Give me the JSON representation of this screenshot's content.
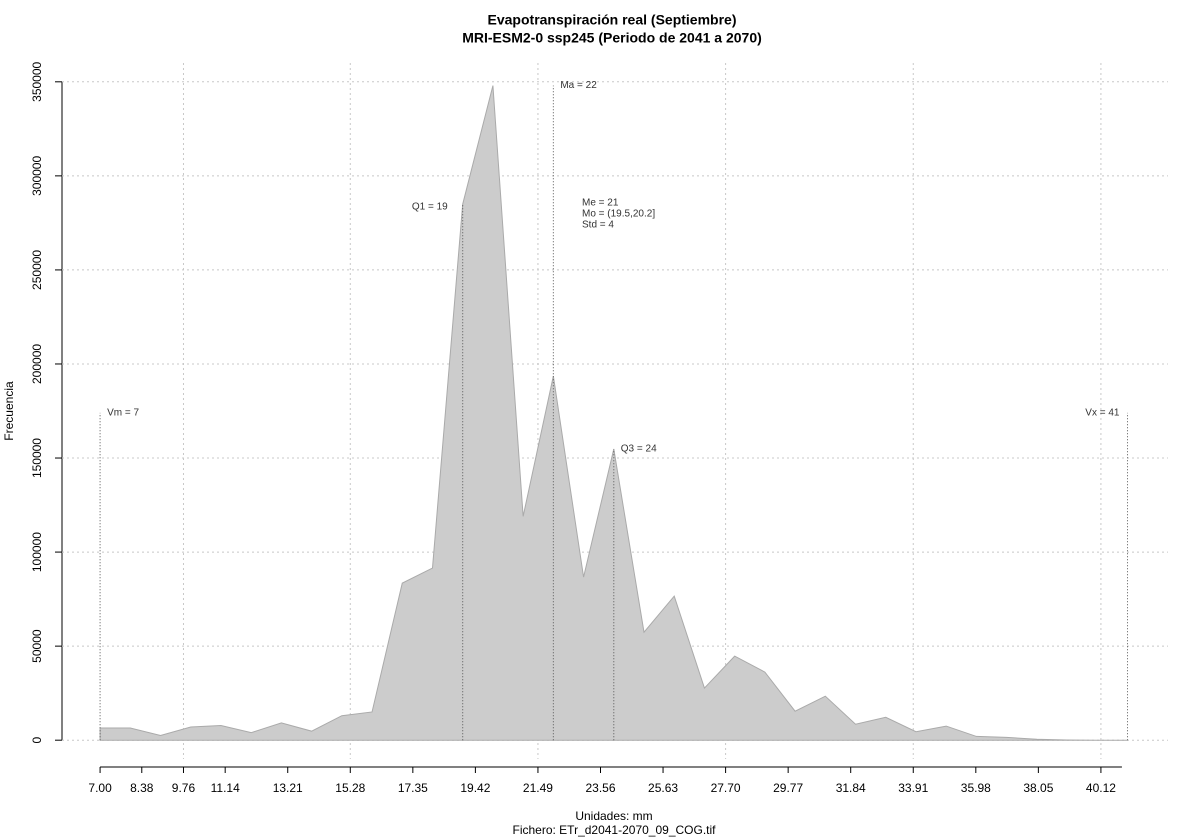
{
  "chart_data": {
    "type": "area",
    "title": "Evapotranspiración real (Septiembre)",
    "subtitle": "MRI-ESM2-0 ssp245 (Periodo de 2041 a 2070)",
    "x_label": "Unidades: mm",
    "caption": "Fichero: ETr_d2041-2070_09_COG.tif",
    "y_label": "Frecuencia",
    "x": [
      7,
      8,
      9,
      10,
      11,
      12,
      13,
      14,
      15,
      16,
      17,
      18,
      19,
      20,
      21,
      22,
      23,
      24,
      25,
      26,
      27,
      28,
      29,
      30,
      31,
      32,
      33,
      34,
      35,
      36,
      37,
      38,
      39,
      40,
      41
    ],
    "values": [
      6500,
      6500,
      2500,
      7000,
      7800,
      4000,
      9200,
      4800,
      13000,
      15000,
      83500,
      91500,
      285000,
      348000,
      119000,
      193600,
      86700,
      154800,
      57400,
      76600,
      27700,
      44700,
      36200,
      15400,
      23400,
      8500,
      12200,
      4500,
      7500,
      2000,
      1500,
      500,
      100,
      0,
      0
    ],
    "color": "#cccccc",
    "xlim": [
      5.74,
      42.34
    ],
    "ylim": [
      -10000,
      360000
    ],
    "xticks": [
      {
        "value": 7,
        "label": "7.00"
      },
      8.38,
      9.76,
      11.14,
      13.21,
      15.28,
      17.35,
      19.42,
      21.49,
      23.56,
      25.63,
      {
        "value": 27.7,
        "label": "27.70"
      },
      29.77,
      31.84,
      33.91,
      35.98,
      38.05,
      40.12
    ],
    "yticks": [
      0,
      50000,
      100000,
      150000,
      200000,
      250000,
      300000,
      350000
    ],
    "grid": true,
    "markers": [
      {
        "label": "Vm = 7",
        "value": 7
      },
      {
        "label": "Q1 = 19",
        "value": 19
      },
      {
        "label": "Ma = 22",
        "value": 22
      },
      {
        "label": "Q3 = 24",
        "value": 24
      },
      {
        "label": "Vx = 41",
        "value": 41
      }
    ],
    "stats": [
      "Me = 21",
      "Mo = (19.5,20.2]",
      "Std = 4"
    ]
  }
}
